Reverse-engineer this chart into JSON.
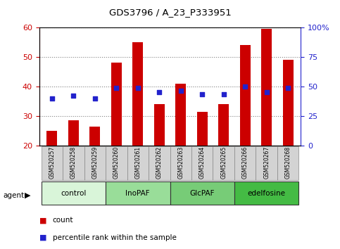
{
  "title": "GDS3796 / A_23_P333951",
  "samples": [
    "GSM520257",
    "GSM520258",
    "GSM520259",
    "GSM520260",
    "GSM520261",
    "GSM520262",
    "GSM520263",
    "GSM520264",
    "GSM520265",
    "GSM520266",
    "GSM520267",
    "GSM520268"
  ],
  "bar_values": [
    25,
    28.5,
    26.5,
    48,
    55,
    34,
    41,
    31.5,
    34,
    54,
    59.5,
    49
  ],
  "dot_values": [
    36,
    37,
    36,
    39.5,
    39.5,
    38,
    38.5,
    37.5,
    37.5,
    40,
    38,
    39.5
  ],
  "bar_color": "#cc0000",
  "dot_color": "#2222cc",
  "ylim_left": [
    20,
    60
  ],
  "ylim_right": [
    0,
    100
  ],
  "yticks_left": [
    20,
    30,
    40,
    50,
    60
  ],
  "yticks_right": [
    0,
    25,
    50,
    75,
    100
  ],
  "yticklabels_right": [
    "0",
    "25",
    "50",
    "75",
    "100%"
  ],
  "groups": [
    {
      "label": "control",
      "indices": [
        0,
        1,
        2
      ],
      "color": "#d9f5d9"
    },
    {
      "label": "InoPAF",
      "indices": [
        3,
        4,
        5
      ],
      "color": "#99dd99"
    },
    {
      "label": "GlcPAF",
      "indices": [
        6,
        7,
        8
      ],
      "color": "#77cc77"
    },
    {
      "label": "edelfosine",
      "indices": [
        9,
        10,
        11
      ],
      "color": "#44bb44"
    }
  ],
  "legend_count_label": "count",
  "legend_pct_label": "percentile rank within the sample",
  "agent_label": "agent",
  "left_axis_color": "#cc0000",
  "right_axis_color": "#2222cc",
  "bar_width": 0.5,
  "dot_size": 22,
  "figsize": [
    4.83,
    3.54
  ],
  "dpi": 100
}
